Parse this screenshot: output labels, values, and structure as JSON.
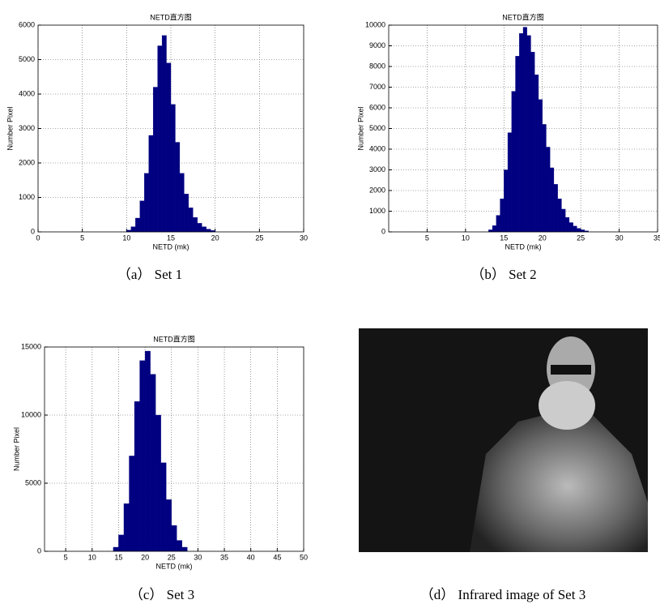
{
  "chart_data": [
    {
      "type": "histogram",
      "title": "NETD直方图",
      "x_label": "NETD (mk)",
      "y_label": "Number Pixel",
      "caption": "（a） Set 1",
      "color": "#000080",
      "grid": true,
      "bins": [
        10,
        10.5,
        11,
        11.5,
        12,
        12.5,
        13,
        13.5,
        14,
        14.5,
        15,
        15.5,
        16,
        16.5,
        17,
        17.5,
        18,
        18.5,
        19,
        19.5,
        20
      ],
      "values": [
        50,
        150,
        400,
        900,
        1700,
        2800,
        4200,
        5400,
        5700,
        4900,
        3700,
        2600,
        1700,
        1100,
        700,
        420,
        250,
        150,
        80,
        40
      ],
      "xlim": [
        0,
        30
      ],
      "xticks": [
        0,
        5,
        10,
        15,
        20,
        25,
        30
      ],
      "ylim": [
        0,
        6000
      ],
      "yticks": [
        0,
        1000,
        2000,
        3000,
        4000,
        5000,
        6000
      ]
    },
    {
      "type": "histogram",
      "title": "NETD直方图",
      "x_label": "NETD (mk)",
      "y_label": "Number Pixel",
      "caption": "（b） Set 2",
      "color": "#000080",
      "grid": true,
      "bins": [
        13,
        13.5,
        14,
        14.5,
        15,
        15.5,
        16,
        16.5,
        17,
        17.5,
        18,
        18.5,
        19,
        19.5,
        20,
        20.5,
        21,
        21.5,
        22,
        22.5,
        23,
        23.5,
        24,
        24.5,
        25,
        25.5,
        26
      ],
      "values": [
        100,
        300,
        800,
        1600,
        3000,
        4800,
        6800,
        8500,
        9600,
        9900,
        9500,
        8700,
        7600,
        6400,
        5200,
        4100,
        3100,
        2300,
        1600,
        1100,
        700,
        450,
        280,
        170,
        100,
        50
      ],
      "xlim": [
        0,
        35
      ],
      "xticks": [
        5,
        10,
        15,
        20,
        25,
        30,
        35
      ],
      "ylim": [
        0,
        10000
      ],
      "yticks": [
        0,
        1000,
        2000,
        3000,
        4000,
        5000,
        6000,
        7000,
        8000,
        9000,
        10000
      ]
    },
    {
      "type": "histogram",
      "title": "NETD直方图",
      "x_label": "NETD (mk)",
      "y_label": "Number Pixel",
      "caption": "（c） Set 3",
      "color": "#000080",
      "grid": true,
      "bins": [
        14,
        15,
        16,
        17,
        18,
        19,
        20,
        21,
        22,
        23,
        24,
        25,
        26,
        27,
        28
      ],
      "values": [
        300,
        1200,
        3500,
        7000,
        11000,
        14000,
        14700,
        13000,
        10000,
        6500,
        3800,
        1900,
        800,
        300
      ],
      "xlim": [
        1,
        50
      ],
      "xticks": [
        5,
        10,
        15,
        20,
        25,
        30,
        35,
        40,
        45,
        50
      ],
      "ylim": [
        0,
        15000
      ],
      "yticks": [
        0,
        5000,
        10000,
        15000
      ]
    }
  ],
  "image": {
    "caption": "（d） Infrared image of Set 3"
  }
}
